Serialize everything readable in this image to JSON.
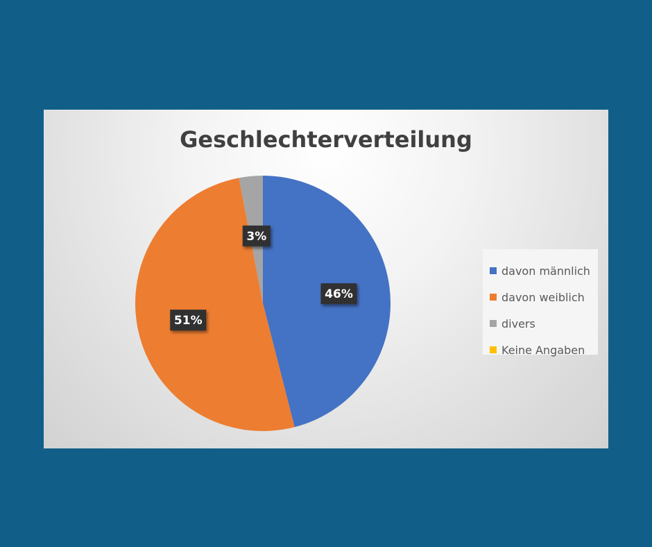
{
  "chart_data": {
    "type": "pie",
    "title": "Geschlechterverteilung",
    "categories": [
      "davon männlich",
      "davon weiblich",
      "divers",
      "Keine Angaben"
    ],
    "values": [
      46,
      51,
      3,
      0
    ],
    "data_labels": [
      "46%",
      "51%",
      "3%",
      ""
    ],
    "colors": [
      "#4472c4",
      "#ed7d31",
      "#a5a5a5",
      "#ffc000"
    ],
    "legend_position": "right"
  }
}
